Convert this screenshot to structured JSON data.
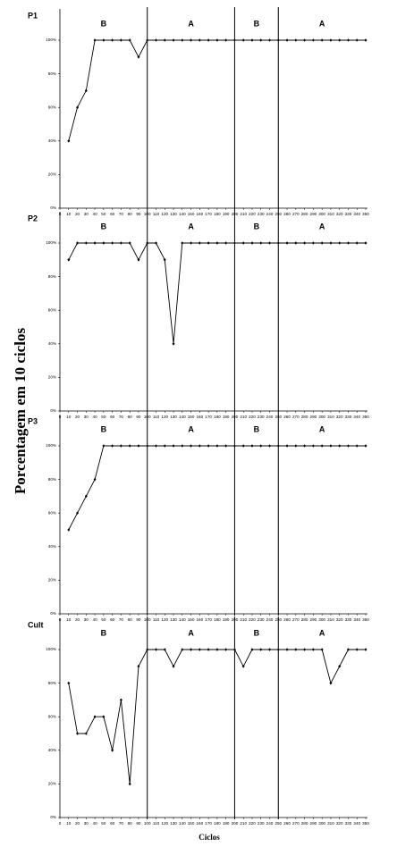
{
  "ylabel": "Porcentagem em 10 ciclos",
  "xlabel": "Ciclos",
  "chart_data": [
    {
      "type": "line",
      "title": "P1",
      "x": [
        10,
        20,
        30,
        40,
        50,
        60,
        70,
        80,
        90,
        100,
        110,
        120,
        130,
        140,
        150,
        160,
        170,
        180,
        190,
        200,
        210,
        220,
        230,
        240,
        250,
        260,
        270,
        280,
        290,
        300,
        310,
        320,
        330,
        340,
        350
      ],
      "series": [
        {
          "color": "#000000",
          "values": [
            40,
            60,
            70,
            100,
            100,
            100,
            100,
            100,
            90,
            100,
            100,
            100,
            100,
            100,
            100,
            100,
            100,
            100,
            100,
            100,
            100,
            100,
            100,
            100,
            100,
            100,
            100,
            100,
            100,
            100,
            100,
            100,
            100,
            100,
            100
          ]
        }
      ],
      "xlim": [
        0,
        350
      ],
      "xticks": [
        0,
        10,
        20,
        30,
        40,
        50,
        60,
        70,
        80,
        90,
        100,
        110,
        120,
        130,
        140,
        150,
        160,
        170,
        180,
        190,
        200,
        210,
        220,
        230,
        240,
        250,
        260,
        270,
        280,
        290,
        300,
        310,
        320,
        330,
        340,
        350
      ],
      "ylim": [
        0,
        100
      ],
      "yticks": [
        {
          "value": 0,
          "label": "0%"
        },
        {
          "value": 20,
          "label": "20%"
        },
        {
          "value": 40,
          "label": "40%"
        },
        {
          "value": 60,
          "label": "60%"
        },
        {
          "value": 80,
          "label": "80%"
        },
        {
          "value": 100,
          "label": "100%"
        }
      ],
      "phase_lines": [
        100,
        200,
        250
      ],
      "annotations": [
        "B",
        "A",
        "B",
        "A"
      ]
    },
    {
      "type": "line",
      "title": "P2",
      "x": [
        10,
        20,
        30,
        40,
        50,
        60,
        70,
        80,
        90,
        100,
        110,
        120,
        130,
        140,
        150,
        160,
        170,
        180,
        190,
        200,
        210,
        220,
        230,
        240,
        250,
        260,
        270,
        280,
        290,
        300,
        310,
        320,
        330,
        340,
        350
      ],
      "series": [
        {
          "color": "#000000",
          "values": [
            90,
            100,
            100,
            100,
            100,
            100,
            100,
            100,
            90,
            100,
            100,
            90,
            40,
            100,
            100,
            100,
            100,
            100,
            100,
            100,
            100,
            100,
            100,
            100,
            100,
            100,
            100,
            100,
            100,
            100,
            100,
            100,
            100,
            100,
            100
          ]
        }
      ],
      "xlim": [
        0,
        350
      ],
      "xticks": [
        0,
        10,
        20,
        30,
        40,
        50,
        60,
        70,
        80,
        90,
        100,
        110,
        120,
        130,
        140,
        150,
        160,
        170,
        180,
        190,
        200,
        210,
        220,
        230,
        240,
        250,
        260,
        270,
        280,
        290,
        300,
        310,
        320,
        330,
        340,
        350
      ],
      "ylim": [
        0,
        100
      ],
      "yticks": [
        {
          "value": 0,
          "label": "0%"
        },
        {
          "value": 20,
          "label": "20%"
        },
        {
          "value": 40,
          "label": "40%"
        },
        {
          "value": 60,
          "label": "60%"
        },
        {
          "value": 80,
          "label": "80%"
        },
        {
          "value": 100,
          "label": "100%"
        }
      ],
      "phase_lines": [
        100,
        200,
        250
      ],
      "annotations": [
        "B",
        "A",
        "B",
        "A"
      ]
    },
    {
      "type": "line",
      "title": "P3",
      "x": [
        10,
        20,
        30,
        40,
        50,
        60,
        70,
        80,
        90,
        100,
        110,
        120,
        130,
        140,
        150,
        160,
        170,
        180,
        190,
        200,
        210,
        220,
        230,
        240,
        250,
        260,
        270,
        280,
        290,
        300,
        310,
        320,
        330,
        340,
        350
      ],
      "series": [
        {
          "color": "#000000",
          "values": [
            50,
            60,
            70,
            80,
            100,
            100,
            100,
            100,
            100,
            100,
            100,
            100,
            100,
            100,
            100,
            100,
            100,
            100,
            100,
            100,
            100,
            100,
            100,
            100,
            100,
            100,
            100,
            100,
            100,
            100,
            100,
            100,
            100,
            100,
            100
          ]
        }
      ],
      "xlim": [
        0,
        350
      ],
      "xticks": [
        0,
        10,
        20,
        30,
        40,
        50,
        60,
        70,
        80,
        90,
        100,
        110,
        120,
        130,
        140,
        150,
        160,
        170,
        180,
        190,
        200,
        210,
        220,
        230,
        240,
        250,
        260,
        270,
        280,
        290,
        300,
        310,
        320,
        330,
        340,
        350
      ],
      "ylim": [
        0,
        100
      ],
      "yticks": [
        {
          "value": 0,
          "label": "0%"
        },
        {
          "value": 20,
          "label": "20%"
        },
        {
          "value": 40,
          "label": "40%"
        },
        {
          "value": 60,
          "label": "60%"
        },
        {
          "value": 80,
          "label": "80%"
        },
        {
          "value": 100,
          "label": "100%"
        }
      ],
      "phase_lines": [
        100,
        200,
        250
      ],
      "annotations": [
        "B",
        "A",
        "B",
        "A"
      ]
    },
    {
      "type": "line",
      "title": "Cult",
      "x": [
        10,
        20,
        30,
        40,
        50,
        60,
        70,
        80,
        90,
        100,
        110,
        120,
        130,
        140,
        150,
        160,
        170,
        180,
        190,
        200,
        210,
        220,
        230,
        240,
        250,
        260,
        270,
        280,
        290,
        300,
        310,
        320,
        330,
        340,
        350
      ],
      "series": [
        {
          "color": "#000000",
          "values": [
            80,
            50,
            50,
            60,
            60,
            40,
            70,
            20,
            90,
            100,
            100,
            100,
            90,
            100,
            100,
            100,
            100,
            100,
            100,
            100,
            90,
            100,
            100,
            100,
            100,
            100,
            100,
            100,
            100,
            100,
            80,
            90,
            100,
            100,
            100
          ]
        }
      ],
      "xlim": [
        0,
        350
      ],
      "xticks": [
        0,
        10,
        20,
        30,
        40,
        50,
        60,
        70,
        80,
        90,
        100,
        110,
        120,
        130,
        140,
        150,
        160,
        170,
        180,
        190,
        200,
        210,
        220,
        230,
        240,
        250,
        260,
        270,
        280,
        290,
        300,
        310,
        320,
        330,
        340,
        350
      ],
      "ylim": [
        0,
        100
      ],
      "yticks": [
        {
          "value": 0,
          "label": "0%"
        },
        {
          "value": 20,
          "label": "20%"
        },
        {
          "value": 40,
          "label": "40%"
        },
        {
          "value": 60,
          "label": "60%"
        },
        {
          "value": 80,
          "label": "80%"
        },
        {
          "value": 100,
          "label": "100%"
        }
      ],
      "phase_lines": [
        100,
        200,
        250
      ],
      "annotations": [
        "B",
        "A",
        "B",
        "A"
      ]
    }
  ]
}
